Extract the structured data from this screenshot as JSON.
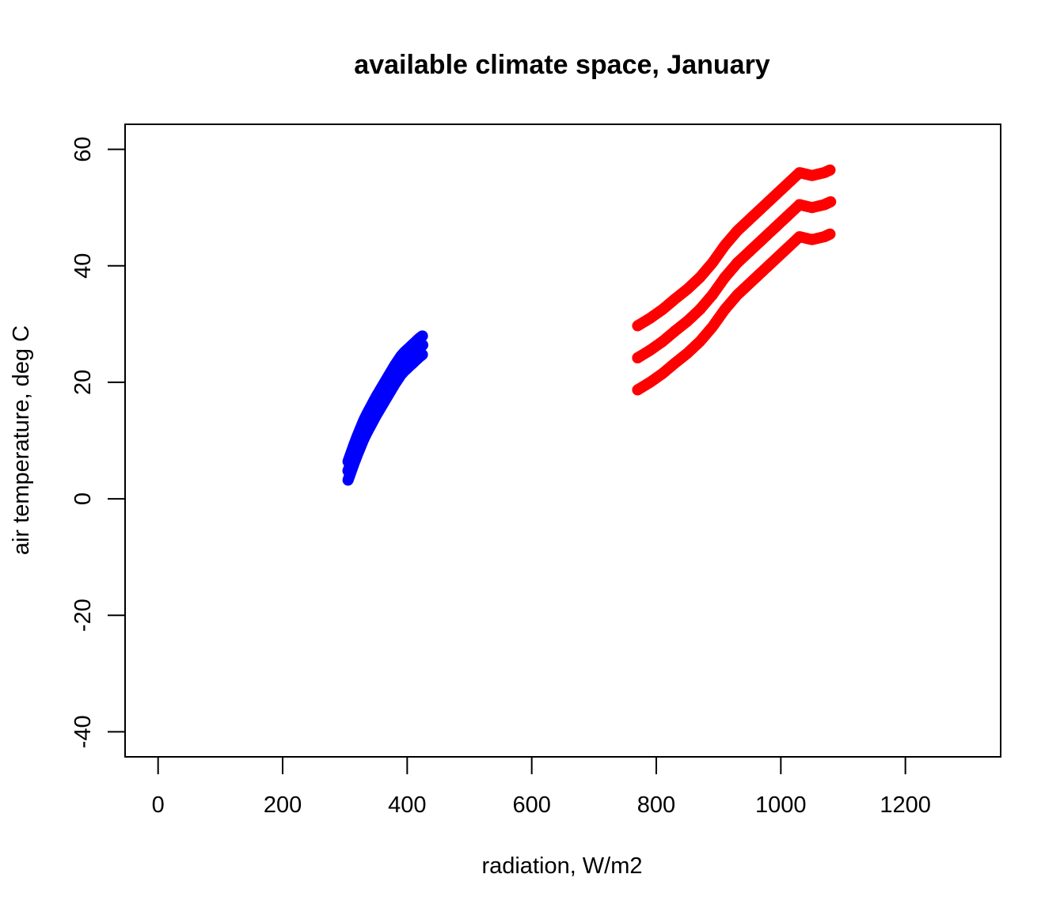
{
  "chart_data": {
    "type": "scatter",
    "title": "available climate space, January",
    "xlabel": "radiation, W/m2",
    "ylabel": "air temperature, deg C",
    "xlim": [
      -53,
      1353
    ],
    "ylim": [
      -44.3,
      64.3
    ],
    "x_ticks": [
      0,
      200,
      400,
      600,
      800,
      1000,
      1200
    ],
    "y_ticks": [
      -40,
      -20,
      0,
      20,
      40,
      60
    ],
    "grid": false,
    "legend": "none",
    "series": [
      {
        "color": "#0000ff",
        "x": [
          305,
          310,
          315,
          320,
          325,
          330,
          335,
          340,
          345,
          350,
          355,
          360,
          365,
          370,
          375,
          380,
          385,
          390,
          395,
          400,
          405,
          410,
          415,
          420,
          425
        ],
        "y": [
          4.8,
          6.3,
          7.8,
          9.2,
          10.5,
          11.8,
          12.9,
          13.9,
          14.9,
          15.9,
          16.8,
          17.7,
          18.6,
          19.5,
          20.4,
          21.3,
          22.1,
          22.9,
          23.5,
          24.0,
          24.5,
          25.0,
          25.5,
          26.0,
          26.4
        ]
      },
      {
        "color": "#ff0000",
        "x": [
          770,
          790,
          810,
          830,
          850,
          870,
          890,
          910,
          930,
          950,
          970,
          990,
          1010,
          1030,
          1050,
          1070,
          1080
        ],
        "y": [
          24.2,
          25.5,
          27.0,
          28.8,
          30.5,
          32.5,
          35.0,
          38.0,
          40.5,
          42.5,
          44.5,
          46.5,
          48.5,
          50.5,
          50.0,
          50.5,
          51.0
        ]
      }
    ]
  }
}
